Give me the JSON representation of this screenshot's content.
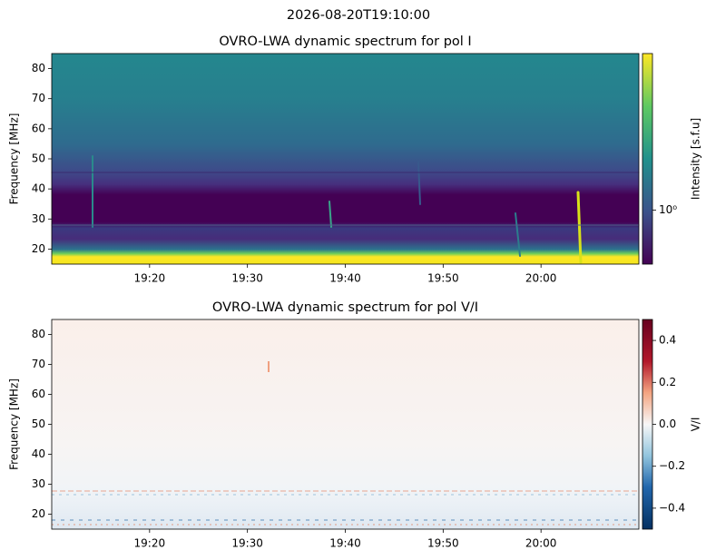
{
  "title": "2026-08-20T19:10:00",
  "chart_data": [
    {
      "type": "heatmap",
      "title": "OVRO-LWA dynamic spectrum for pol I",
      "ylabel": "Frequency [MHz]",
      "xlim": [
        "19:10",
        "20:10"
      ],
      "xticks": [
        "19:20",
        "19:30",
        "19:40",
        "19:50",
        "20:00"
      ],
      "ylim": [
        15,
        85
      ],
      "yticks": [
        20,
        30,
        40,
        50,
        60,
        70,
        80
      ],
      "colorbar": {
        "label": "Intensity [s.f.u]",
        "scale": "log",
        "clim": [
          0.62,
          4
        ],
        "colormap": "viridis",
        "ticks": [
          {
            "value": 1,
            "label": "10⁰"
          }
        ]
      }
    },
    {
      "type": "heatmap",
      "title": "OVRO-LWA dynamic spectrum for pol V/I",
      "ylabel": "Frequency [MHz]",
      "xlim": [
        "19:10",
        "20:10"
      ],
      "xticks": [
        "19:20",
        "19:30",
        "19:40",
        "19:50",
        "20:00"
      ],
      "ylim": [
        15,
        85
      ],
      "yticks": [
        20,
        30,
        40,
        50,
        60,
        70,
        80
      ],
      "colorbar": {
        "label": "V/I",
        "scale": "linear",
        "clim": [
          -0.5,
          0.5
        ],
        "colormap": "RdBu_r",
        "ticks": [
          {
            "value": -0.4,
            "label": "−0.4"
          },
          {
            "value": -0.2,
            "label": "−0.2"
          },
          {
            "value": 0,
            "label": "0.0"
          },
          0.2,
          0.4
        ]
      }
    }
  ]
}
